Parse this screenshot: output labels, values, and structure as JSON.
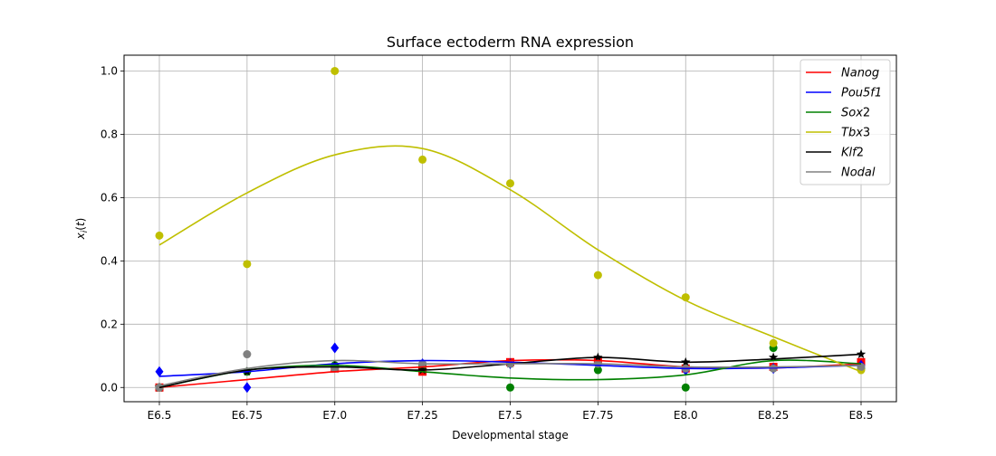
{
  "chart_data": {
    "type": "line",
    "title": "Surface ectoderm RNA expression",
    "xlabel": "Developmental stage",
    "ylabel": "x_i(t)",
    "categories": [
      "E6.5",
      "E6.75",
      "E7.0",
      "E7.25",
      "E7.5",
      "E7.75",
      "E8.0",
      "E8.25",
      "E8.5"
    ],
    "ylim": [
      -0.045,
      1.05
    ],
    "yticks": [
      "0.0",
      "0.2",
      "0.4",
      "0.6",
      "0.8",
      "1.0"
    ],
    "grid": true,
    "legend_position": "top-right",
    "series": [
      {
        "name": "Nanog",
        "color": "#ff0000",
        "marker": "square",
        "points": [
          0.0,
          null,
          0.06,
          0.05,
          0.08,
          0.085,
          0.06,
          0.065,
          0.08
        ],
        "curve": [
          0.0,
          0.025,
          0.05,
          0.065,
          0.085,
          0.085,
          0.065,
          0.062,
          0.075
        ]
      },
      {
        "name": "Pou5f1",
        "color": "#0000ff",
        "marker": "diamond",
        "points": [
          0.05,
          0.0,
          0.125,
          0.075,
          0.075,
          0.075,
          0.055,
          0.06,
          0.07
        ],
        "curve": [
          0.035,
          0.05,
          0.075,
          0.085,
          0.08,
          0.07,
          0.06,
          0.062,
          0.07
        ]
      },
      {
        "name": "Sox2",
        "color": "#008000",
        "marker": "circle",
        "points": [
          0.0,
          0.05,
          0.07,
          0.07,
          0.0,
          0.055,
          0.0,
          0.125,
          0.06
        ],
        "curve": [
          0.0,
          0.055,
          0.07,
          0.05,
          0.03,
          0.025,
          0.04,
          0.085,
          0.075
        ]
      },
      {
        "name": "Tbx3",
        "color": "#bfbf00",
        "marker": "circle",
        "points": [
          0.48,
          0.39,
          1.0,
          0.72,
          0.645,
          0.355,
          0.285,
          0.14,
          0.055
        ],
        "curve": [
          0.45,
          0.615,
          0.735,
          0.755,
          0.625,
          0.435,
          0.275,
          0.16,
          0.05
        ]
      },
      {
        "name": "Klf2",
        "color": "#000000",
        "marker": "star",
        "points": [
          0.0,
          0.05,
          0.07,
          0.055,
          0.075,
          0.095,
          0.08,
          0.095,
          0.105
        ],
        "curve": [
          0.0,
          0.055,
          0.065,
          0.055,
          0.075,
          0.095,
          0.08,
          0.09,
          0.105
        ]
      },
      {
        "name": "Nodal",
        "color": "#808080",
        "marker": "circle",
        "points": [
          0.0,
          0.105,
          0.06,
          0.075,
          0.075,
          0.075,
          0.06,
          0.06,
          0.065
        ],
        "curve": [
          0.005,
          0.06,
          0.085,
          0.075,
          0.075,
          0.075,
          0.065,
          0.065,
          0.07
        ]
      }
    ]
  }
}
